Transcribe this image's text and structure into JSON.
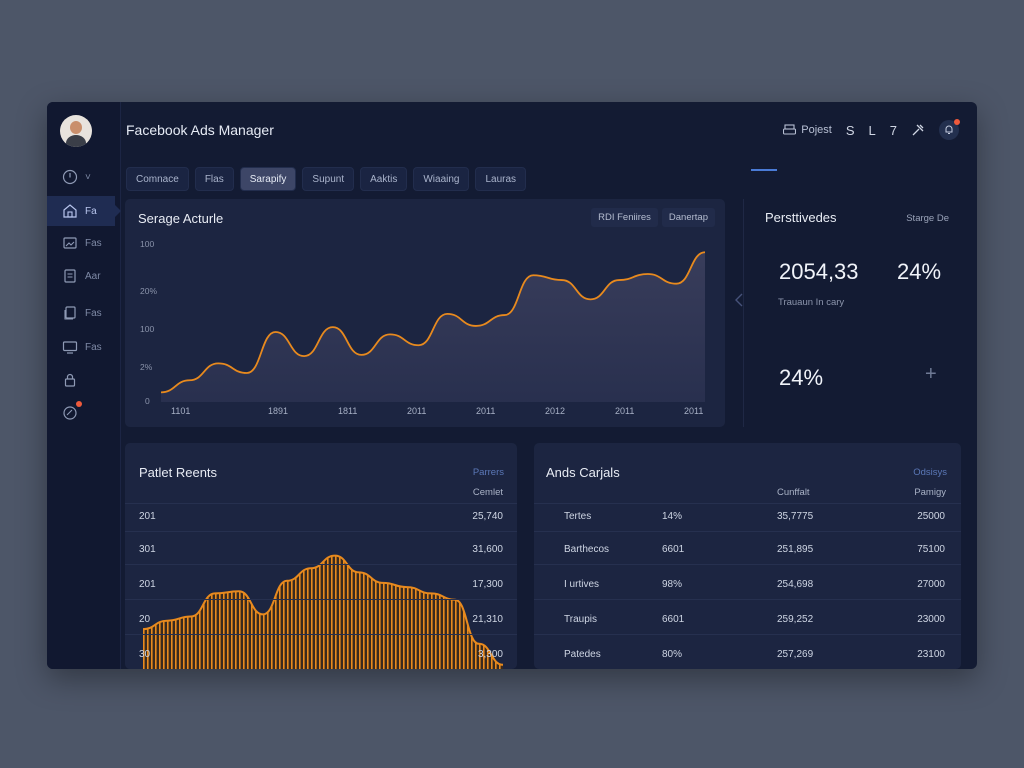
{
  "app": {
    "title": "Facebook Ads Manager"
  },
  "topbar": {
    "project_label": "Pojest",
    "icon_letters": [
      "S",
      "L",
      "7"
    ]
  },
  "sidebar": {
    "top_arrow": "˅",
    "items": [
      {
        "label": "Fa",
        "icon": "building-icon"
      },
      {
        "label": "Fas",
        "icon": "image-icon"
      },
      {
        "label": "Aar",
        "icon": "document-icon"
      },
      {
        "label": "Fas",
        "icon": "files-icon"
      },
      {
        "label": "Fas",
        "icon": "monitor-icon"
      },
      {
        "label": "",
        "icon": "lock-icon"
      },
      {
        "label": "",
        "icon": "globe-icon"
      }
    ]
  },
  "tabs": [
    "Comnace",
    "Flas",
    "Sarapify",
    "Supunt",
    "Aaktis",
    "Wiaaing",
    "Lauras"
  ],
  "main_chart": {
    "title": "Serage Acturle",
    "buttons": [
      "RDI Feniires",
      "Danertap"
    ],
    "chart_data": {
      "type": "area",
      "y_tick_labels": [
        "100",
        "20%",
        "100",
        "2%",
        "0"
      ],
      "x_tick_labels": [
        "1101",
        "1891",
        "1811",
        "2011",
        "2011",
        "2012",
        "2011",
        "2011"
      ],
      "x": [
        0,
        1,
        2,
        3,
        4,
        5,
        6,
        7,
        8,
        9,
        10,
        11,
        12,
        13,
        14,
        15,
        16,
        17,
        18,
        19
      ],
      "y": [
        8,
        18,
        32,
        24,
        58,
        38,
        62,
        39,
        56,
        47,
        73,
        63,
        72,
        105,
        101,
        85,
        101,
        106,
        98,
        124
      ],
      "ylim": [
        0,
        135
      ],
      "color": "#e88a1e"
    }
  },
  "stats": {
    "title": "Persttivedes",
    "link": "Starge De",
    "value_1": "2054,33",
    "value_2": "24%",
    "caption": "Trauaun In cary",
    "value_3": "24%",
    "plus": "+"
  },
  "left_table": {
    "title": "Patlet Reents",
    "link": "Parrers",
    "header": "Cemlet",
    "rows": [
      {
        "label": "201",
        "value": "25,740"
      },
      {
        "label": "301",
        "value": "31,600"
      },
      {
        "label": "201",
        "value": "17,300"
      },
      {
        "label": "20",
        "value": "21,310"
      },
      {
        "label": "30",
        "value": "3,300"
      }
    ],
    "chart_data": {
      "type": "area",
      "x": [
        0,
        1,
        2,
        3,
        4,
        5,
        6,
        7,
        8,
        9,
        10,
        11,
        12,
        13,
        14,
        15
      ],
      "y": [
        38,
        46,
        50,
        72,
        74,
        52,
        84,
        96,
        108,
        92,
        82,
        78,
        72,
        66,
        24,
        4
      ],
      "ylim": [
        0,
        120
      ],
      "color": "#e88a1e"
    }
  },
  "right_table": {
    "title": "Ands Carjals",
    "link": "Odsisys",
    "headers": [
      "Cunffalt",
      "Pamigy"
    ],
    "rows": [
      {
        "name": "Tertes",
        "pct": "14%",
        "val": "35,7775",
        "total": "25000"
      },
      {
        "name": "Barthecos",
        "pct": "6601",
        "val": "251,895",
        "total": "75100"
      },
      {
        "name": "I urtives",
        "pct": "98%",
        "val": "254,698",
        "total": "27000"
      },
      {
        "name": "Traupis",
        "pct": "6601",
        "val": "259,252",
        "total": "23000"
      },
      {
        "name": "Patedes",
        "pct": "80%",
        "val": "257,269",
        "total": "23100"
      }
    ]
  },
  "colors": {
    "accent": "#e88a1e",
    "panel": "#1c2541",
    "window": "#131b33",
    "active_tab": "#3d4667"
  }
}
